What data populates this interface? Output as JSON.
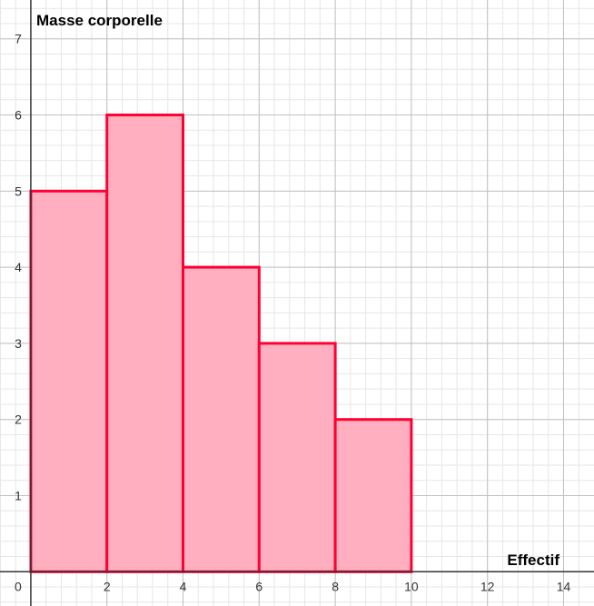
{
  "chart_data": {
    "type": "bar",
    "subtype": "histogram",
    "title": "",
    "xlabel": "Effectif",
    "ylabel": "Masse corporelle",
    "bins": [
      {
        "x0": 0,
        "x1": 2,
        "value": 5
      },
      {
        "x0": 2,
        "x1": 4,
        "value": 6
      },
      {
        "x0": 4,
        "x1": 6,
        "value": 4
      },
      {
        "x0": 6,
        "x1": 8,
        "value": 3
      },
      {
        "x0": 8,
        "x1": 10,
        "value": 2
      }
    ],
    "xlim": [
      -0.81,
      14.8
    ],
    "ylim": [
      -0.45,
      7.51
    ],
    "x_ticks": [
      "0",
      "2",
      "4",
      "6",
      "8",
      "10",
      "12",
      "14"
    ],
    "y_ticks": [
      "1",
      "2",
      "3",
      "4",
      "5",
      "6",
      "7"
    ],
    "grid": true,
    "colors": {
      "bar_fill": "#ffafbf",
      "bar_stroke": "#ff0033",
      "major_grid": "#c0c0c0",
      "minor_grid": "#e6e6e6",
      "axis": "#333333"
    }
  }
}
